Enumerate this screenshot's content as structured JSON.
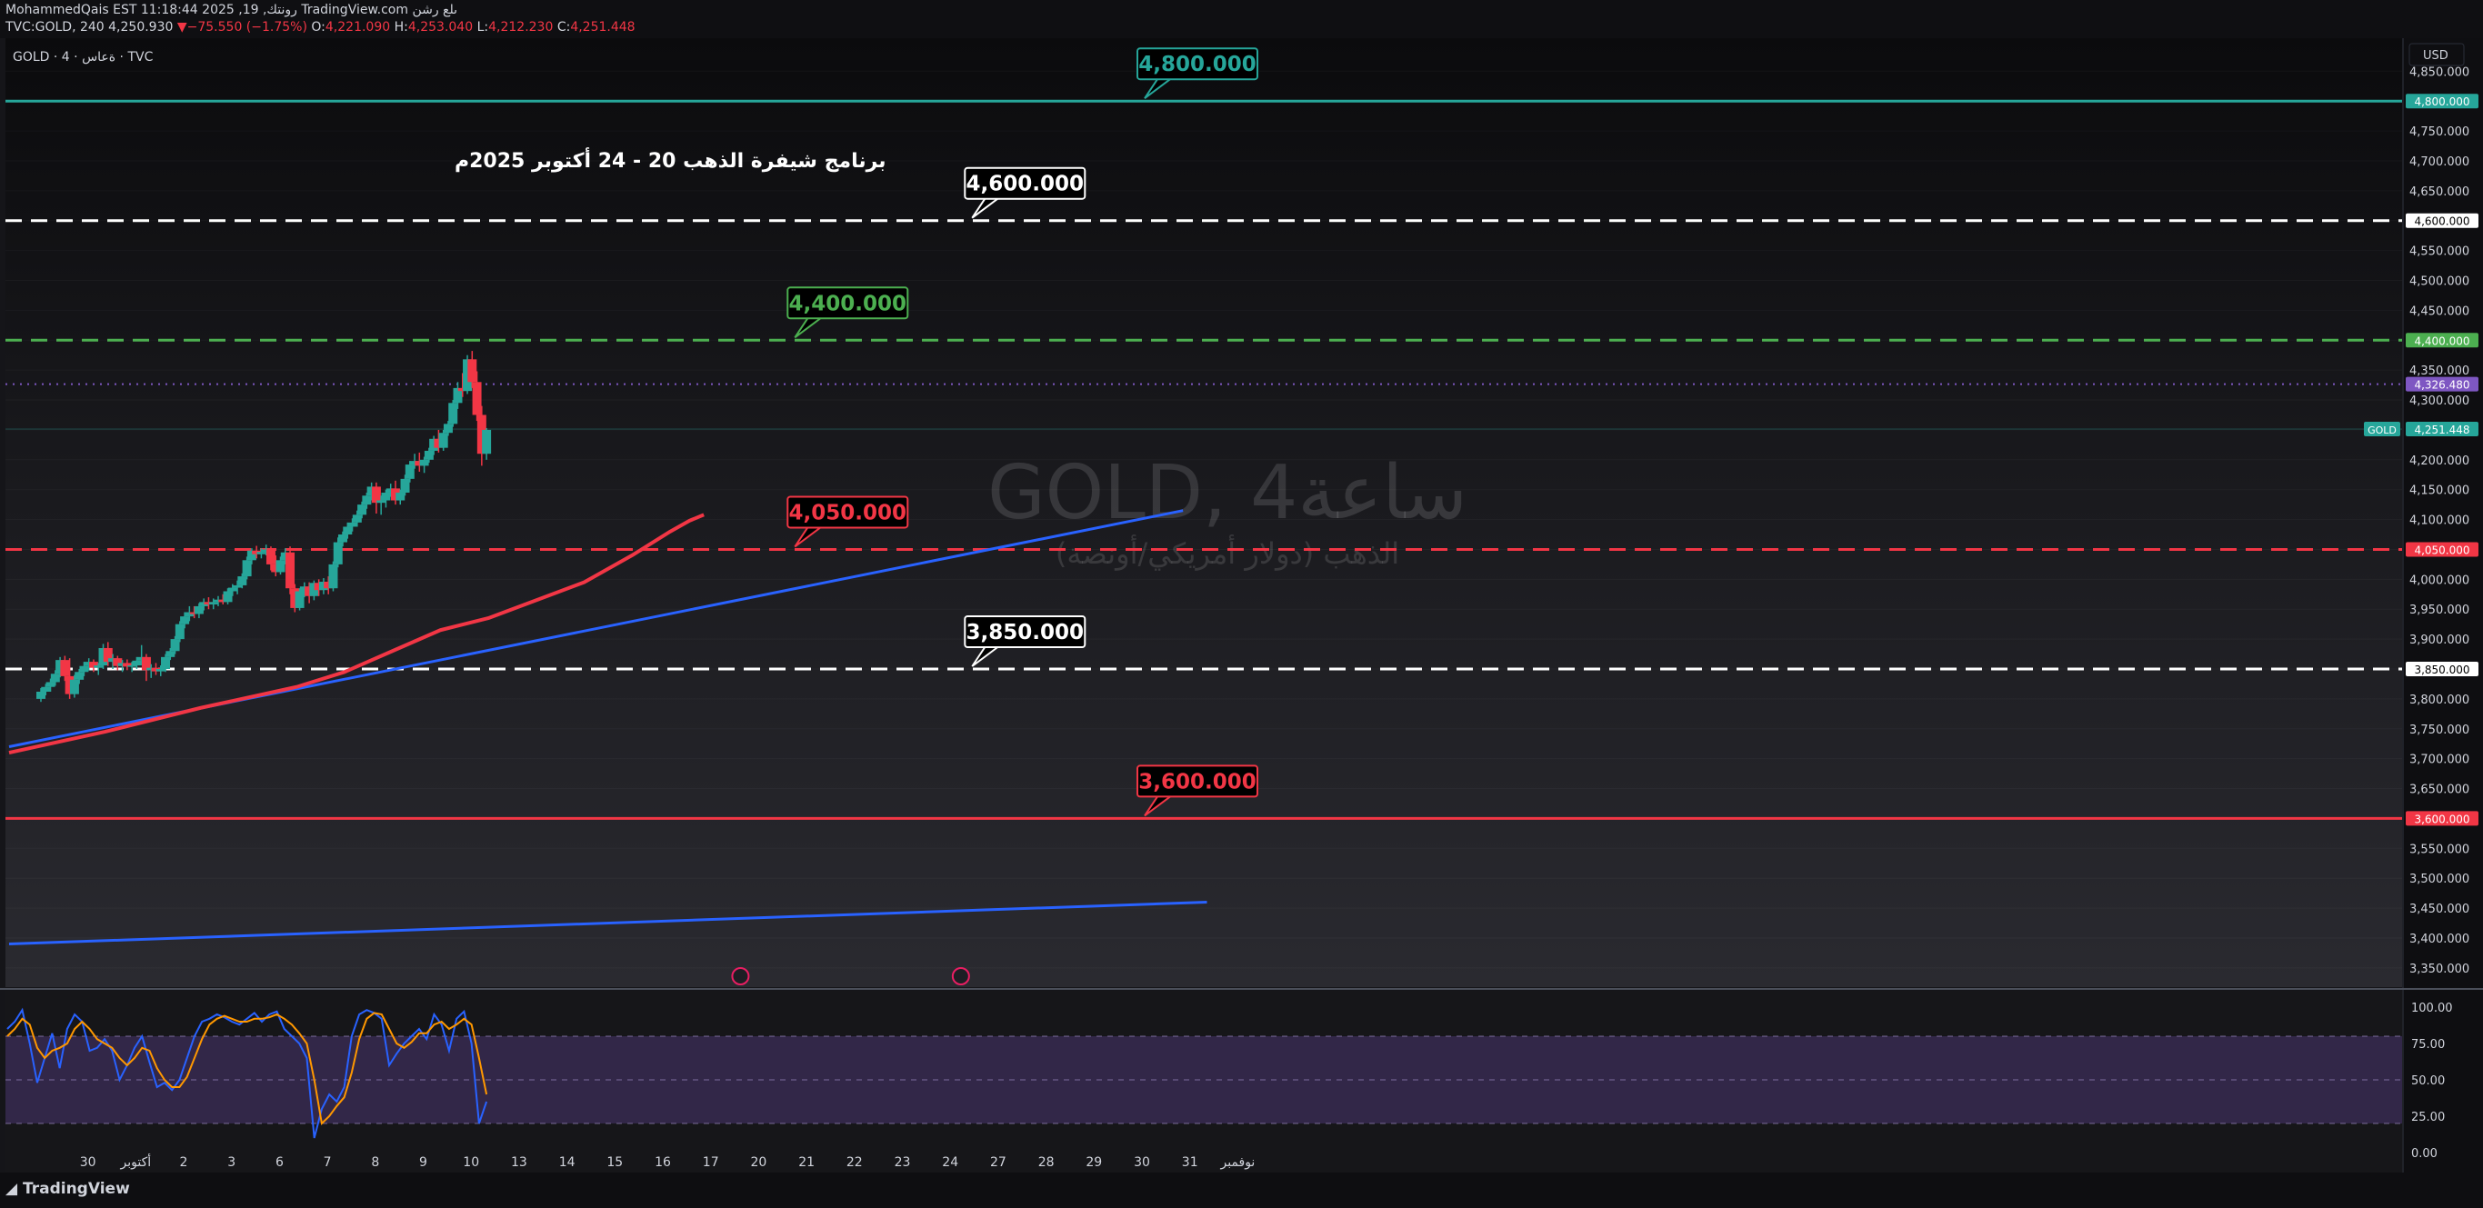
{
  "header": {
    "line1": "MohammedQais EST 11:18:44 2025 ,19 ,رونتك TradingView.com ىلع رشن",
    "symbol_line": "TVC:GOLD, 240 4,250.930",
    "change_arrow": "▼",
    "change": "−75.550 (−1.75%)",
    "o_label": "O:",
    "o": "4,221.090",
    "h_label": "H:",
    "h": "4,253.040",
    "l_label": "L:",
    "l": "4,212.230",
    "c_label": "C:",
    "c": "4,251.448"
  },
  "legend": {
    "text": "GOLD · 4 · ةعاس · TVC"
  },
  "currency_button": "USD",
  "watermark": {
    "line1": "GOLD, 4ساعة",
    "line2": "الذهب (دولار أمريكي/أونصة)"
  },
  "annotation_title": "برنامج شيفرة الذهب 20 - 24 أكتوبر 2025م",
  "price_tags": {
    "current_symbol": "GOLD",
    "current_value": "4,251.448",
    "dotted_value": "4,326.480"
  },
  "colors": {
    "up": "#26a69a",
    "down": "#f23645",
    "rsi_line": "#2962ff",
    "rsi_ma": "#ff9800",
    "trend": "#2962ff",
    "ma": "#f23645",
    "rsi_band": "#7e57c2"
  },
  "branding": "TradingView",
  "chart_data": {
    "type": "candlestick",
    "y_range": [
      3330,
      4890
    ],
    "y_ticks": [
      "4,850.000",
      "4,800.000",
      "4,750.000",
      "4,700.000",
      "4,650.000",
      "4,600.000",
      "4,550.000",
      "4,500.000",
      "4,450.000",
      "4,400.000",
      "4,350.000",
      "4,300.000",
      "4,250.000",
      "4,200.000",
      "4,150.000",
      "4,100.000",
      "4,050.000",
      "4,000.000",
      "3,950.000",
      "3,900.000",
      "3,850.000",
      "3,800.000",
      "3,750.000",
      "3,700.000",
      "3,650.000",
      "3,600.000",
      "3,550.000",
      "3,500.000",
      "3,450.000",
      "3,400.000",
      "3,350.000"
    ],
    "y_tick_values": [
      4850,
      4800,
      4750,
      4700,
      4650,
      4600,
      4550,
      4500,
      4450,
      4400,
      4350,
      4300,
      4250,
      4200,
      4150,
      4100,
      4050,
      4000,
      3950,
      3900,
      3850,
      3800,
      3750,
      3700,
      3650,
      3600,
      3550,
      3500,
      3450,
      3400,
      3350
    ],
    "x_ticks": [
      {
        "label": "30",
        "i": 6
      },
      {
        "label": "أكتوبر",
        "i": 16
      },
      {
        "label": "2",
        "i": 26
      },
      {
        "label": "3",
        "i": 36
      },
      {
        "label": "6",
        "i": 46
      },
      {
        "label": "7",
        "i": 56
      },
      {
        "label": "8",
        "i": 66
      },
      {
        "label": "9",
        "i": 76
      },
      {
        "label": "10",
        "i": 86
      },
      {
        "label": "13",
        "i": 96
      },
      {
        "label": "14",
        "i": 106
      },
      {
        "label": "15",
        "i": 116
      },
      {
        "label": "16",
        "i": 126
      },
      {
        "label": "17",
        "i": 136
      },
      {
        "label": "20",
        "i": 146
      },
      {
        "label": "21",
        "i": 156
      },
      {
        "label": "22",
        "i": 166
      },
      {
        "label": "23",
        "i": 176
      },
      {
        "label": "24",
        "i": 186
      },
      {
        "label": "27",
        "i": 196
      },
      {
        "label": "28",
        "i": 206
      },
      {
        "label": "29",
        "i": 216
      },
      {
        "label": "30",
        "i": 226
      },
      {
        "label": "31",
        "i": 236
      },
      {
        "label": "نوفمبر",
        "i": 246
      }
    ],
    "candles": [
      [
        3800,
        3818,
        3795,
        3812
      ],
      [
        3812,
        3825,
        3806,
        3820
      ],
      [
        3820,
        3834,
        3812,
        3828
      ],
      [
        3828,
        3848,
        3822,
        3842
      ],
      [
        3842,
        3870,
        3836,
        3865
      ],
      [
        3865,
        3872,
        3830,
        3838
      ],
      [
        3838,
        3868,
        3800,
        3808
      ],
      [
        3808,
        3840,
        3802,
        3832
      ],
      [
        3832,
        3850,
        3825,
        3845
      ],
      [
        3845,
        3862,
        3838,
        3855
      ],
      [
        3855,
        3868,
        3848,
        3862
      ],
      [
        3862,
        3866,
        3845,
        3852
      ],
      [
        3852,
        3860,
        3840,
        3856
      ],
      [
        3856,
        3892,
        3850,
        3885
      ],
      [
        3885,
        3895,
        3855,
        3862
      ],
      [
        3862,
        3875,
        3850,
        3868
      ],
      [
        3868,
        3872,
        3848,
        3855
      ],
      [
        3855,
        3865,
        3845,
        3860
      ],
      [
        3860,
        3866,
        3848,
        3854
      ],
      [
        3854,
        3862,
        3845,
        3856
      ],
      [
        3856,
        3870,
        3850,
        3864
      ],
      [
        3864,
        3890,
        3856,
        3870
      ],
      [
        3870,
        3875,
        3830,
        3848
      ],
      [
        3848,
        3858,
        3835,
        3852
      ],
      [
        3852,
        3860,
        3840,
        3846
      ],
      [
        3846,
        3856,
        3838,
        3850
      ],
      [
        3850,
        3875,
        3845,
        3870
      ],
      [
        3870,
        3885,
        3865,
        3880
      ],
      [
        3880,
        3905,
        3875,
        3900
      ],
      [
        3900,
        3930,
        3895,
        3925
      ],
      [
        3925,
        3945,
        3918,
        3938
      ],
      [
        3938,
        3955,
        3930,
        3945
      ],
      [
        3945,
        3955,
        3935,
        3942
      ],
      [
        3942,
        3960,
        3935,
        3955
      ],
      [
        3955,
        3968,
        3948,
        3962
      ],
      [
        3962,
        3970,
        3950,
        3958
      ],
      [
        3958,
        3968,
        3950,
        3962
      ],
      [
        3962,
        3972,
        3955,
        3966
      ],
      [
        3966,
        3975,
        3958,
        3962
      ],
      [
        3962,
        3985,
        3958,
        3980
      ],
      [
        3980,
        3992,
        3972,
        3986
      ],
      [
        3986,
        3998,
        3975,
        3990
      ],
      [
        3990,
        4010,
        3985,
        4005
      ],
      [
        4005,
        4038,
        4000,
        4032
      ],
      [
        4032,
        4052,
        4025,
        4048
      ],
      [
        4048,
        4056,
        4035,
        4042
      ],
      [
        4042,
        4052,
        4035,
        4046
      ],
      [
        4046,
        4058,
        4040,
        4050
      ],
      [
        4050,
        4055,
        4015,
        4025
      ],
      [
        4025,
        4040,
        4005,
        4012
      ],
      [
        4012,
        4038,
        4008,
        4032
      ],
      [
        4032,
        4052,
        4025,
        4045
      ],
      [
        4045,
        4055,
        3975,
        3985
      ],
      [
        3985,
        3992,
        3945,
        3952
      ],
      [
        3952,
        3985,
        3948,
        3980
      ],
      [
        3980,
        3995,
        3970,
        3988
      ],
      [
        3988,
        3995,
        3960,
        3972
      ],
      [
        3972,
        3998,
        3965,
        3994
      ],
      [
        3994,
        4000,
        3972,
        3982
      ],
      [
        3982,
        4002,
        3975,
        3996
      ],
      [
        3996,
        4005,
        3975,
        3985
      ],
      [
        3985,
        4030,
        3980,
        4025
      ],
      [
        4025,
        4070,
        4020,
        4062
      ],
      [
        4062,
        4080,
        4055,
        4075
      ],
      [
        4075,
        4095,
        4068,
        4088
      ],
      [
        4088,
        4102,
        4080,
        4095
      ],
      [
        4095,
        4115,
        4088,
        4108
      ],
      [
        4108,
        4130,
        4102,
        4125
      ],
      [
        4125,
        4145,
        4118,
        4140
      ],
      [
        4140,
        4162,
        4132,
        4155
      ],
      [
        4155,
        4162,
        4110,
        4128
      ],
      [
        4128,
        4140,
        4108,
        4132
      ],
      [
        4132,
        4150,
        4120,
        4145
      ],
      [
        4145,
        4160,
        4138,
        4152
      ],
      [
        4152,
        4165,
        4125,
        4132
      ],
      [
        4132,
        4150,
        4125,
        4145
      ],
      [
        4145,
        4175,
        4140,
        4168
      ],
      [
        4168,
        4198,
        4162,
        4192
      ],
      [
        4192,
        4210,
        4185,
        4198
      ],
      [
        4198,
        4212,
        4180,
        4190
      ],
      [
        4190,
        4205,
        4178,
        4200
      ],
      [
        4200,
        4220,
        4195,
        4215
      ],
      [
        4215,
        4240,
        4208,
        4235
      ],
      [
        4235,
        4250,
        4212,
        4220
      ],
      [
        4220,
        4250,
        4215,
        4245
      ],
      [
        4245,
        4265,
        4240,
        4260
      ],
      [
        4260,
        4300,
        4255,
        4295
      ],
      [
        4295,
        4330,
        4285,
        4320
      ],
      [
        4320,
        4345,
        4305,
        4315
      ],
      [
        4315,
        4375,
        4310,
        4368
      ],
      [
        4368,
        4382,
        4320,
        4330
      ],
      [
        4330,
        4348,
        4265,
        4275
      ],
      [
        4275,
        4290,
        4190,
        4210
      ],
      [
        4210,
        4253,
        4200,
        4250
      ]
    ],
    "ma_points": [
      [
        0,
        3710
      ],
      [
        20,
        3745
      ],
      [
        40,
        3785
      ],
      [
        60,
        3820
      ],
      [
        70,
        3845
      ],
      [
        80,
        3880
      ],
      [
        90,
        3915
      ],
      [
        100,
        3935
      ],
      [
        110,
        3965
      ],
      [
        120,
        3995
      ],
      [
        130,
        4040
      ],
      [
        138,
        4080
      ],
      [
        142,
        4098
      ],
      [
        145,
        4108
      ]
    ],
    "trendlines": [
      {
        "name": "upper-trend",
        "from": [
          0,
          3720
        ],
        "to": [
          245,
          4115
        ]
      },
      {
        "name": "lower-trend",
        "from": [
          0,
          3390
        ],
        "to": [
          250,
          3460
        ]
      }
    ],
    "levels": [
      {
        "name": "level-4800",
        "value": 4800,
        "label": "4,800.000",
        "style": "solid",
        "color": "#26a69a",
        "box_i": 237
      },
      {
        "name": "level-4600",
        "value": 4600,
        "label": "4,600.000",
        "style": "dashed",
        "color": "#ffffff",
        "box_i": 201
      },
      {
        "name": "level-4400",
        "value": 4400,
        "label": "4,400.000",
        "style": "dashed",
        "color": "#4caf50",
        "box_i": 164
      },
      {
        "name": "level-4050",
        "value": 4050,
        "label": "4,050.000",
        "style": "dashed",
        "color": "#f23645",
        "box_i": 164
      },
      {
        "name": "level-3850",
        "value": 3850,
        "label": "3,850.000",
        "style": "dashed",
        "color": "#ffffff",
        "box_i": 201
      },
      {
        "name": "level-3600",
        "value": 3600,
        "label": "3,600.000",
        "style": "solid",
        "color": "#f23645",
        "box_i": 237
      }
    ],
    "rsi": {
      "y_range": [
        -10,
        105
      ],
      "ticks": [
        "100.00",
        "75.00",
        "50.00",
        "25.00",
        "0.00"
      ],
      "tick_values": [
        100,
        75,
        50,
        25,
        0
      ],
      "band": [
        20,
        80
      ],
      "k": [
        85,
        90,
        98,
        75,
        48,
        65,
        82,
        58,
        85,
        95,
        90,
        70,
        72,
        78,
        70,
        50,
        60,
        72,
        80,
        62,
        45,
        48,
        43,
        50,
        65,
        80,
        90,
        92,
        95,
        93,
        90,
        88,
        92,
        96,
        90,
        95,
        97,
        85,
        80,
        75,
        65,
        10,
        30,
        40,
        35,
        45,
        80,
        95,
        98,
        96,
        92,
        60,
        68,
        75,
        80,
        85,
        78,
        95,
        88,
        70,
        92,
        97,
        75,
        20,
        35
      ],
      "d": [
        80,
        85,
        92,
        88,
        72,
        65,
        70,
        72,
        75,
        85,
        90,
        85,
        78,
        75,
        72,
        65,
        60,
        65,
        72,
        70,
        58,
        50,
        45,
        45,
        52,
        65,
        78,
        88,
        92,
        94,
        92,
        90,
        90,
        92,
        92,
        93,
        95,
        92,
        88,
        82,
        75,
        50,
        20,
        25,
        32,
        38,
        55,
        78,
        92,
        96,
        95,
        85,
        75,
        72,
        76,
        82,
        82,
        88,
        90,
        85,
        88,
        92,
        88,
        65,
        40
      ]
    },
    "event_icons": [
      {
        "name": "flash-event-icon",
        "i": 146
      },
      {
        "name": "us-flag-event-icon",
        "i": 192
      }
    ]
  }
}
